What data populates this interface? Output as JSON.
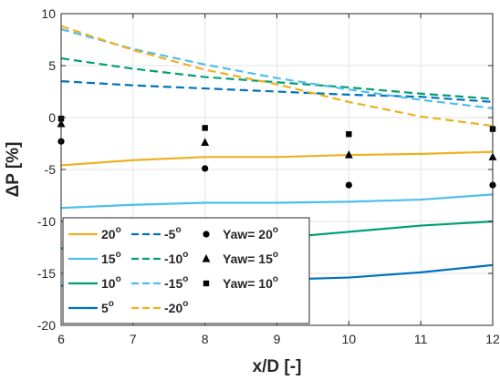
{
  "chart_data": {
    "type": "line",
    "xlabel": "x/D [-]",
    "ylabel": "ΔP [%]",
    "xlim": [
      6,
      12
    ],
    "ylim": [
      -20,
      10
    ],
    "xticks": [
      6,
      7,
      8,
      9,
      10,
      11,
      12
    ],
    "yticks": [
      10,
      5,
      0,
      -5,
      -10,
      -15,
      -20
    ],
    "grid": true,
    "legend_position": "bottom-left",
    "series": [
      {
        "name": "20",
        "unit": "o",
        "style": "solid",
        "color": "#EDB120",
        "x": [
          6,
          7,
          8,
          9,
          10,
          11,
          12
        ],
        "y": [
          -4.6,
          -4.1,
          -3.8,
          -3.8,
          -3.6,
          -3.5,
          -3.3
        ]
      },
      {
        "name": "15",
        "unit": "o",
        "style": "solid",
        "color": "#4DBEEE",
        "x": [
          6,
          7,
          8,
          9,
          10,
          11,
          12
        ],
        "y": [
          -8.7,
          -8.4,
          -8.2,
          -8.2,
          -8.1,
          -7.9,
          -7.4
        ]
      },
      {
        "name": "10",
        "unit": "o",
        "style": "solid",
        "color": "#009E73",
        "x": [
          6,
          7,
          8,
          9,
          10,
          11,
          12
        ],
        "y": [
          -12.6,
          -12.3,
          -12.0,
          -11.6,
          -11.0,
          -10.4,
          -10.0
        ]
      },
      {
        "name": "5",
        "unit": "o",
        "style": "solid",
        "color": "#0072BD",
        "x": [
          6,
          7,
          8,
          9,
          10,
          11,
          12
        ],
        "y": [
          -16.2,
          -16.0,
          -15.8,
          -15.6,
          -15.4,
          -14.9,
          -14.2
        ]
      },
      {
        "name": "-5",
        "unit": "o",
        "style": "dashed",
        "color": "#0072BD",
        "x": [
          6,
          7,
          8,
          9,
          10,
          11,
          12
        ],
        "y": [
          3.5,
          3.1,
          2.8,
          2.5,
          2.2,
          2.0,
          1.5
        ]
      },
      {
        "name": "-10",
        "unit": "o",
        "style": "dashed",
        "color": "#009E73",
        "x": [
          6,
          7,
          8,
          9,
          10,
          11,
          12
        ],
        "y": [
          5.7,
          4.7,
          3.9,
          3.4,
          2.9,
          2.3,
          1.8
        ]
      },
      {
        "name": "-15",
        "unit": "o",
        "style": "dashed",
        "color": "#4DBEEE",
        "x": [
          6,
          7,
          8,
          9,
          10,
          11,
          12
        ],
        "y": [
          8.5,
          6.6,
          5.1,
          3.8,
          2.7,
          1.7,
          0.9
        ]
      },
      {
        "name": "-20",
        "unit": "o",
        "style": "dashed",
        "color": "#EDB120",
        "x": [
          6,
          7,
          8,
          9,
          10,
          11,
          12
        ],
        "y": [
          8.8,
          6.5,
          4.6,
          3.2,
          1.5,
          0.1,
          -0.8
        ]
      }
    ],
    "markers": [
      {
        "name": "Yaw= 20",
        "unit": "o",
        "shape": "circle",
        "color": "#000000",
        "x": [
          6,
          8,
          10,
          12
        ],
        "y": [
          -2.3,
          -4.9,
          -6.5,
          -6.5
        ]
      },
      {
        "name": "Yaw= 15",
        "unit": "o",
        "shape": "triangle",
        "color": "#000000",
        "x": [
          6,
          8,
          10,
          12
        ],
        "y": [
          -0.6,
          -2.4,
          -3.6,
          -3.8
        ]
      },
      {
        "name": "Yaw= 10",
        "unit": "o",
        "shape": "square",
        "color": "#000000",
        "x": [
          6,
          8,
          10,
          12
        ],
        "y": [
          -0.1,
          -1.0,
          -1.6,
          -1.1
        ]
      }
    ]
  }
}
